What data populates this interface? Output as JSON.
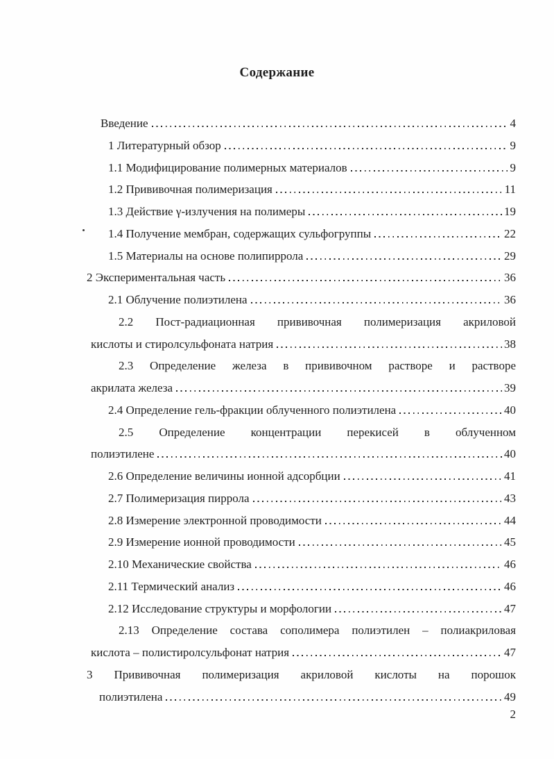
{
  "page": {
    "title": "Содержание",
    "folio": "2"
  },
  "toc": {
    "entries": [
      {
        "style": "intro",
        "lines": [
          "Введение"
        ],
        "page": "4"
      },
      {
        "style": "sub",
        "lines": [
          "1 Литературный обзор"
        ],
        "page": "9"
      },
      {
        "style": "sub",
        "lines": [
          "1.1 Модифицирование полимерных материалов"
        ],
        "page": "9"
      },
      {
        "style": "sub",
        "lines": [
          "1.2 Прививочная полимеризация"
        ],
        "page": "11"
      },
      {
        "style": "sub",
        "lines": [
          "1.3 Действие γ-излучения на полимеры"
        ],
        "page": "19"
      },
      {
        "style": "sub",
        "lines": [
          "1.4 Получение мембран, содержащих сульфогруппы"
        ],
        "page": "22"
      },
      {
        "style": "sub",
        "lines": [
          "1.5 Материалы на основе полипиррола"
        ],
        "page": "29"
      },
      {
        "style": "ch",
        "lines": [
          "2 Экспериментальная часть"
        ],
        "page": "36"
      },
      {
        "style": "sub",
        "lines": [
          "2.1 Облучение полиэтилена"
        ],
        "page": "36"
      },
      {
        "style": "sub2",
        "lines": [
          "2.2 Пост-радиационная прививочная полимеризация акриловой",
          "кислоты и стиролсульфоната натрия"
        ],
        "page": "38"
      },
      {
        "style": "sub2",
        "lines": [
          "2.3 Определение железа в прививочном растворе и растворе",
          "акрилата железа"
        ],
        "page": "39"
      },
      {
        "style": "sub",
        "lines": [
          "2.4 Определение гель-фракции облученного полиэтилена"
        ],
        "page": "40"
      },
      {
        "style": "sub2",
        "lines": [
          "2.5 Определение концентрации перекисей в облученном",
          "полиэтилене"
        ],
        "page": "40"
      },
      {
        "style": "sub",
        "lines": [
          "2.6 Определение величины ионной адсорбции"
        ],
        "page": "41"
      },
      {
        "style": "sub",
        "lines": [
          "2.7 Полимеризация пиррола"
        ],
        "page": "43"
      },
      {
        "style": "sub",
        "lines": [
          "2.8 Измерение электронной проводимости"
        ],
        "page": "44"
      },
      {
        "style": "sub",
        "lines": [
          "2.9 Измерение ионной проводимости"
        ],
        "page": "45"
      },
      {
        "style": "sub",
        "lines": [
          "2.10 Механические свойства"
        ],
        "page": "46"
      },
      {
        "style": "sub",
        "lines": [
          "2.11 Термический анализ"
        ],
        "page": "46"
      },
      {
        "style": "sub",
        "lines": [
          "2.12 Исследование структуры и морфологии"
        ],
        "page": "47"
      },
      {
        "style": "sub2",
        "lines": [
          "2.13 Определение состава сополимера полиэтилен – полиакриловая",
          "кислота – полистиролсульфонат натрия"
        ],
        "page": "47"
      },
      {
        "style": "ch2",
        "lines": [
          "3 Прививочная полимеризация акриловой кислоты на порошок",
          "полиэтилена"
        ],
        "page": "49"
      }
    ]
  }
}
